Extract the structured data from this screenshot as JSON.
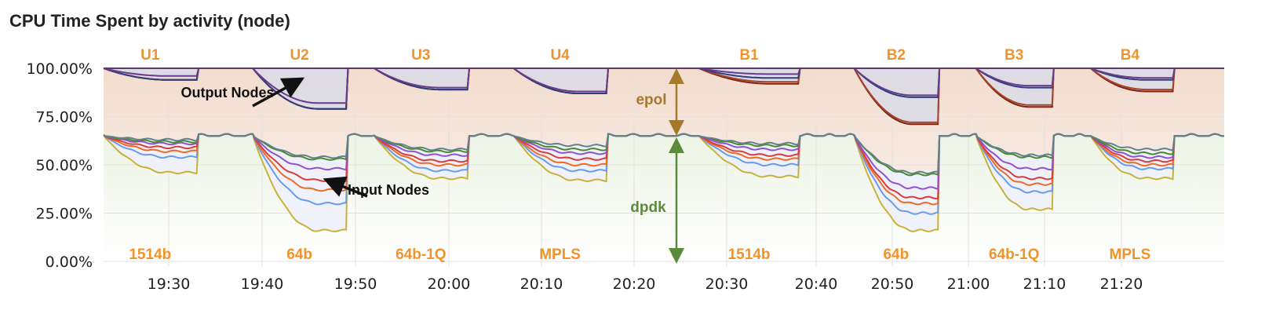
{
  "title": "CPU Time Spent by activity (node)",
  "chart_data": {
    "type": "area",
    "title": "CPU Time Spent by activity (node)",
    "y_ticks": [
      "0.00%",
      "25.00%",
      "50.00%",
      "75.00%",
      "100.00%"
    ],
    "ylim": [
      0,
      100
    ],
    "x_ticks": [
      "19:30",
      "19:40",
      "19:50",
      "20:00",
      "20:10",
      "20:20",
      "20:30",
      "20:40",
      "20:50",
      "21:00",
      "21:10",
      "21:20"
    ],
    "xlim": [
      "19:23",
      "21:32"
    ],
    "grid": true,
    "idle_levels": {
      "output_top": 100,
      "input_top": 65
    },
    "output_series_colors": [
      "#6b3b8c",
      "#2d3f7c",
      "#a8422a",
      "#7a2412"
    ],
    "input_series_colors": [
      "#62818c",
      "#4b8a2b",
      "#8f52d1",
      "#d83c3c",
      "#f06a24",
      "#6b9be8",
      "#c8b23a"
    ],
    "segments": [
      {
        "top_label": "U1",
        "bottom_label": "1514b",
        "start": "19:23",
        "end": "19:33",
        "output_min": [
          96,
          94,
          94,
          94
        ],
        "input_min": [
          63,
          62,
          61,
          59,
          57,
          54,
          46
        ]
      },
      {
        "top_label": "U2",
        "bottom_label": "64b",
        "start": "19:39",
        "end": "19:49",
        "output_min": [
          82,
          79,
          79,
          79
        ],
        "input_min": [
          54,
          53,
          48,
          42,
          37,
          30,
          16
        ]
      },
      {
        "top_label": "U3",
        "bottom_label": "64b-1Q",
        "start": "19:52",
        "end": "20:02",
        "output_min": [
          90,
          89,
          89,
          89
        ],
        "input_min": [
          58,
          57,
          55,
          52,
          50,
          47,
          43
        ]
      },
      {
        "top_label": "U4",
        "bottom_label": "MPLS",
        "start": "20:07",
        "end": "20:17",
        "output_min": [
          88,
          87,
          87,
          87
        ],
        "input_min": [
          60,
          58,
          56,
          53,
          50,
          47,
          42
        ]
      },
      {
        "top_label": "B1",
        "bottom_label": "1514b",
        "start": "20:27",
        "end": "20:38",
        "output_min": [
          97,
          95,
          93,
          92
        ],
        "input_min": [
          61,
          60,
          58,
          55,
          53,
          50,
          44
        ]
      },
      {
        "top_label": "B2",
        "bottom_label": "64b",
        "start": "20:45",
        "end": "20:56",
        "output_min": [
          86,
          85,
          72,
          71
        ],
        "input_min": [
          46,
          45,
          38,
          33,
          30,
          25,
          16
        ]
      },
      {
        "top_label": "B3",
        "bottom_label": "64b-1Q",
        "start": "21:01",
        "end": "21:11",
        "output_min": [
          91,
          90,
          81,
          80
        ],
        "input_min": [
          55,
          54,
          48,
          43,
          40,
          36,
          27
        ]
      },
      {
        "top_label": "B4",
        "bottom_label": "MPLS",
        "start": "21:16",
        "end": "21:26",
        "output_min": [
          95,
          94,
          89,
          88
        ],
        "input_min": [
          58,
          56,
          54,
          52,
          50,
          48,
          43
        ]
      }
    ],
    "annotations": {
      "output": "Output Nodes",
      "input": "Input Nodes",
      "epol": "epol",
      "dpdk": "dpdk",
      "epol_color": "#a57a2a",
      "dpdk_color": "#5a8a3a",
      "label_color": "#f0932b"
    }
  }
}
